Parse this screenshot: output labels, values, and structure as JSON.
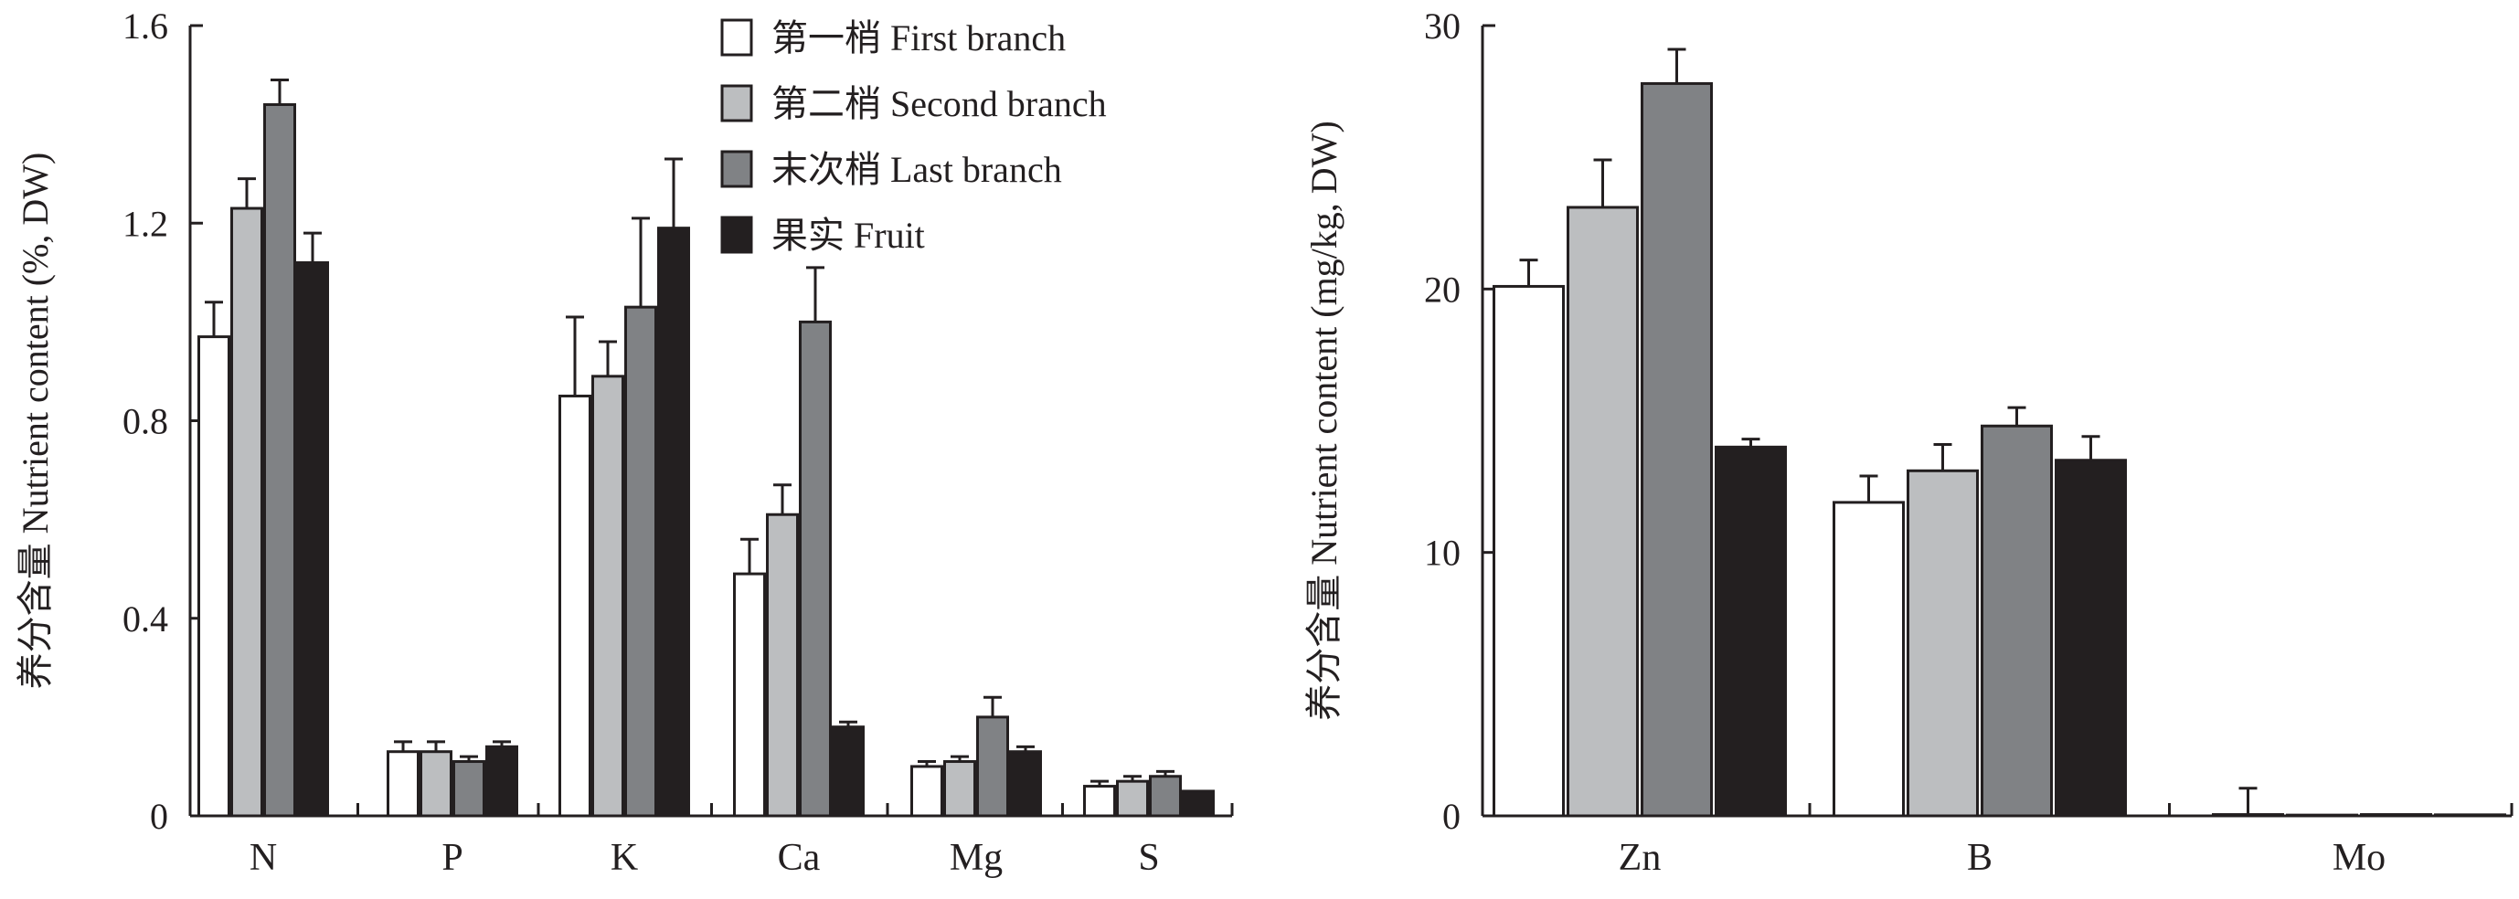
{
  "legend": {
    "items": [
      {
        "label": "第一梢 First branch",
        "color": "#ffffff"
      },
      {
        "label": "第二梢 Second branch",
        "color": "#bcbec0"
      },
      {
        "label": "末次梢 Last branch",
        "color": "#808285"
      },
      {
        "label": "果实 Fruit",
        "color": "#231f20"
      }
    ]
  },
  "chart_data": [
    {
      "type": "bar",
      "categories": [
        "N",
        "P",
        "K",
        "Ca",
        "Mg",
        "S"
      ],
      "ylabel": "养分含量 Nutrient content (%, DW)",
      "ylim": [
        0,
        1.6
      ],
      "yticks": [
        "0",
        "0.4",
        "0.8",
        "1.2",
        "1.6"
      ],
      "yticks_values": [
        0,
        0.4,
        0.8,
        1.2,
        1.6
      ],
      "legend_position": "top-right",
      "series": [
        {
          "name": "第一梢 First branch",
          "values": [
            0.97,
            0.13,
            0.85,
            0.49,
            0.1,
            0.06
          ],
          "errors": [
            0.07,
            0.02,
            0.16,
            0.07,
            0.01,
            0.01
          ]
        },
        {
          "name": "第二梢 Second branch",
          "values": [
            1.23,
            0.13,
            0.89,
            0.61,
            0.11,
            0.07
          ],
          "errors": [
            0.06,
            0.02,
            0.07,
            0.06,
            0.01,
            0.01
          ]
        },
        {
          "name": "末次梢 Last branch",
          "values": [
            1.44,
            0.11,
            1.03,
            1.0,
            0.2,
            0.08
          ],
          "errors": [
            0.05,
            0.01,
            0.18,
            0.11,
            0.04,
            0.01
          ]
        },
        {
          "name": "果实 Fruit",
          "values": [
            1.12,
            0.14,
            1.19,
            0.18,
            0.13,
            0.05
          ],
          "errors": [
            0.06,
            0.01,
            0.14,
            0.01,
            0.01,
            0.0
          ]
        }
      ]
    },
    {
      "type": "bar",
      "categories": [
        "Zn",
        "B",
        "Mo"
      ],
      "ylabel": "养分含量 Nutrient content (mg/kg, DW)",
      "ylim": [
        0,
        30
      ],
      "yticks": [
        "0",
        "10",
        "20",
        "30"
      ],
      "yticks_values": [
        0,
        10,
        20,
        30
      ],
      "series": [
        {
          "name": "第一梢 First branch",
          "values": [
            20.1,
            11.9,
            0.05
          ],
          "errors": [
            1.0,
            1.0,
            1.0
          ]
        },
        {
          "name": "第二梢 Second branch",
          "values": [
            23.1,
            13.1,
            0.03
          ],
          "errors": [
            1.8,
            1.0,
            0.0
          ]
        },
        {
          "name": "末次梢 Last branch",
          "values": [
            27.8,
            14.8,
            0.05
          ],
          "errors": [
            1.3,
            0.7,
            0.0
          ]
        },
        {
          "name": "果实 Fruit",
          "values": [
            14.0,
            13.5,
            0.04
          ],
          "errors": [
            0.3,
            0.9,
            0.0
          ]
        }
      ]
    }
  ]
}
